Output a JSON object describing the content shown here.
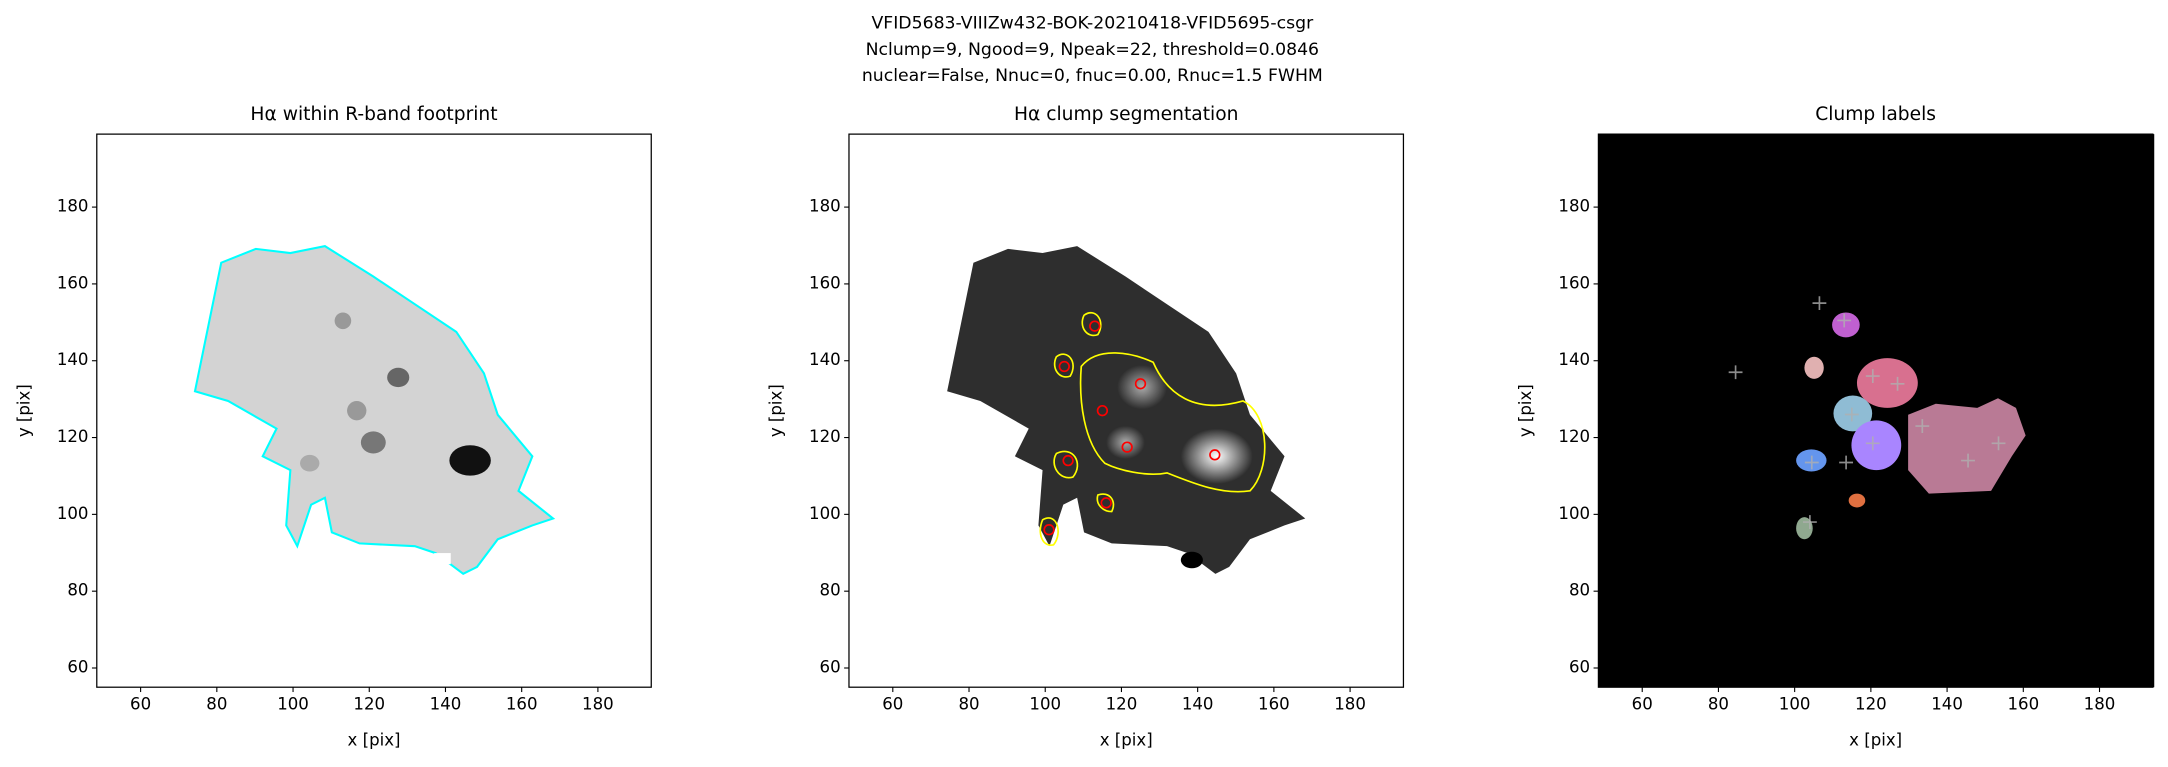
{
  "title": [
    "VFID5683-VIIIZw432-BOK-20210418-VFID5695-csgr",
    "Nclump=9, Ngood=9, Npeak=22, threshold=0.0846",
    "nuclear=False, Nnuc=0, fnuc=0.00, Rnuc=1.5 FWHM"
  ],
  "chart_data": [
    {
      "type": "image",
      "title": "Hα within R-band footprint",
      "x_label": "x [pix]",
      "y_label": "y [pix]",
      "xlim": [
        48.5,
        194
      ],
      "ylim": [
        55,
        199
      ],
      "xticks": [
        60,
        80,
        100,
        120,
        140,
        160,
        180
      ],
      "yticks": [
        60,
        80,
        100,
        120,
        140,
        160,
        180
      ],
      "contour_color": "#00ffff"
    },
    {
      "type": "image",
      "title": "Hα clump segmentation",
      "x_label": "x [pix]",
      "y_label": "y [pix]",
      "xlim": [
        48.5,
        194
      ],
      "ylim": [
        55,
        199
      ],
      "xticks": [
        60,
        80,
        100,
        120,
        140,
        160,
        180
      ],
      "yticks": [
        60,
        80,
        100,
        120,
        140,
        160,
        180
      ],
      "contour_color": "#ffff00",
      "markers": {
        "shape": "circle",
        "color": "#ff0000",
        "x": [
          113,
          105,
          115,
          125,
          121.5,
          144.5,
          106,
          101,
          116
        ],
        "y": [
          149,
          138.5,
          127,
          134,
          117.5,
          115.5,
          114,
          96,
          103
        ]
      }
    },
    {
      "type": "image",
      "title": "Clump labels",
      "x_label": "x [pix]",
      "y_label": "y [pix]",
      "xlim": [
        48.5,
        194
      ],
      "ylim": [
        55,
        199
      ],
      "xticks": [
        60,
        80,
        100,
        120,
        140,
        160,
        180
      ],
      "yticks": [
        60,
        80,
        100,
        120,
        140,
        160,
        180
      ],
      "markers": {
        "shape": "plus",
        "color": "#b0b0b0",
        "x": [
          84.5,
          106.5,
          113,
          120.5,
          127,
          133.5,
          145.5,
          153.5,
          120.5,
          115,
          104.5,
          113.5,
          104
        ],
        "y": [
          137,
          155,
          150.5,
          136,
          134,
          123,
          114,
          118.5,
          118.5,
          126,
          113.5,
          113.5,
          98
        ]
      }
    }
  ]
}
